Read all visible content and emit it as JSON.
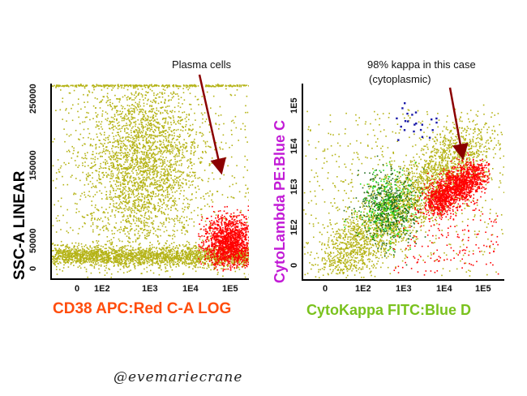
{
  "annotations": {
    "left": "Plasma cells",
    "right_line1": "98% kappa in this case",
    "right_line2": "(cytoplasmic)"
  },
  "credit": "@evemariecrane",
  "colors": {
    "olive": "#b5b316",
    "red": "#ff0000",
    "green": "#22dd22",
    "darkgreen": "#1e6b1e",
    "blue": "#1a1aa8",
    "arrow": "#8b0000",
    "magenta": "#c21bd6",
    "orange": "#ff4d0d",
    "lime": "#7ac21e"
  },
  "chart_data": [
    {
      "type": "scatter",
      "xlabel": "CD38 APC:Red C-A LOG",
      "ylabel": "SSC-A LINEAR",
      "x_ticks": [
        "0",
        "1E2",
        "1E3",
        "1E4",
        "1E5"
      ],
      "y_ticks": [
        "0",
        "50000",
        "150000",
        "250000"
      ],
      "ylim": [
        0,
        262144
      ],
      "series": [
        {
          "name": "",
          "color": "olive",
          "description_populations": [
            "lymphoid low SSC band",
            "myeloid/granular cloud"
          ]
        },
        {
          "name": "",
          "color": "red",
          "region": {
            "x": [
              "1E4",
              "1E5"
            ],
            "y": [
              0,
              60000
            ]
          }
        }
      ],
      "annotation": "Plasma cells"
    },
    {
      "type": "scatter",
      "xlabel": "CytoKappa FITC:Blue D",
      "ylabel": "CytoLambda PE:Blue C",
      "x_ticks": [
        "0",
        "1E2",
        "1E3",
        "1E4",
        "1E5"
      ],
      "y_ticks": [
        "0",
        "1E2",
        "1E3",
        "1E4",
        "1E5"
      ],
      "series": [
        {
          "name": "",
          "color": "olive"
        },
        {
          "name": "",
          "color": "red",
          "region": {
            "x": [
              "1E3",
              "1E5"
            ],
            "y": [
              "1E2",
              "1E4"
            ]
          }
        },
        {
          "name": "",
          "color": "green"
        },
        {
          "name": "",
          "color": "blue",
          "region": {
            "x": [
              "1E2",
              "1E3"
            ],
            "y": [
              "1E4",
              "1E5"
            ]
          }
        }
      ],
      "annotation": "98% kappa in this case (cytoplasmic)"
    }
  ]
}
